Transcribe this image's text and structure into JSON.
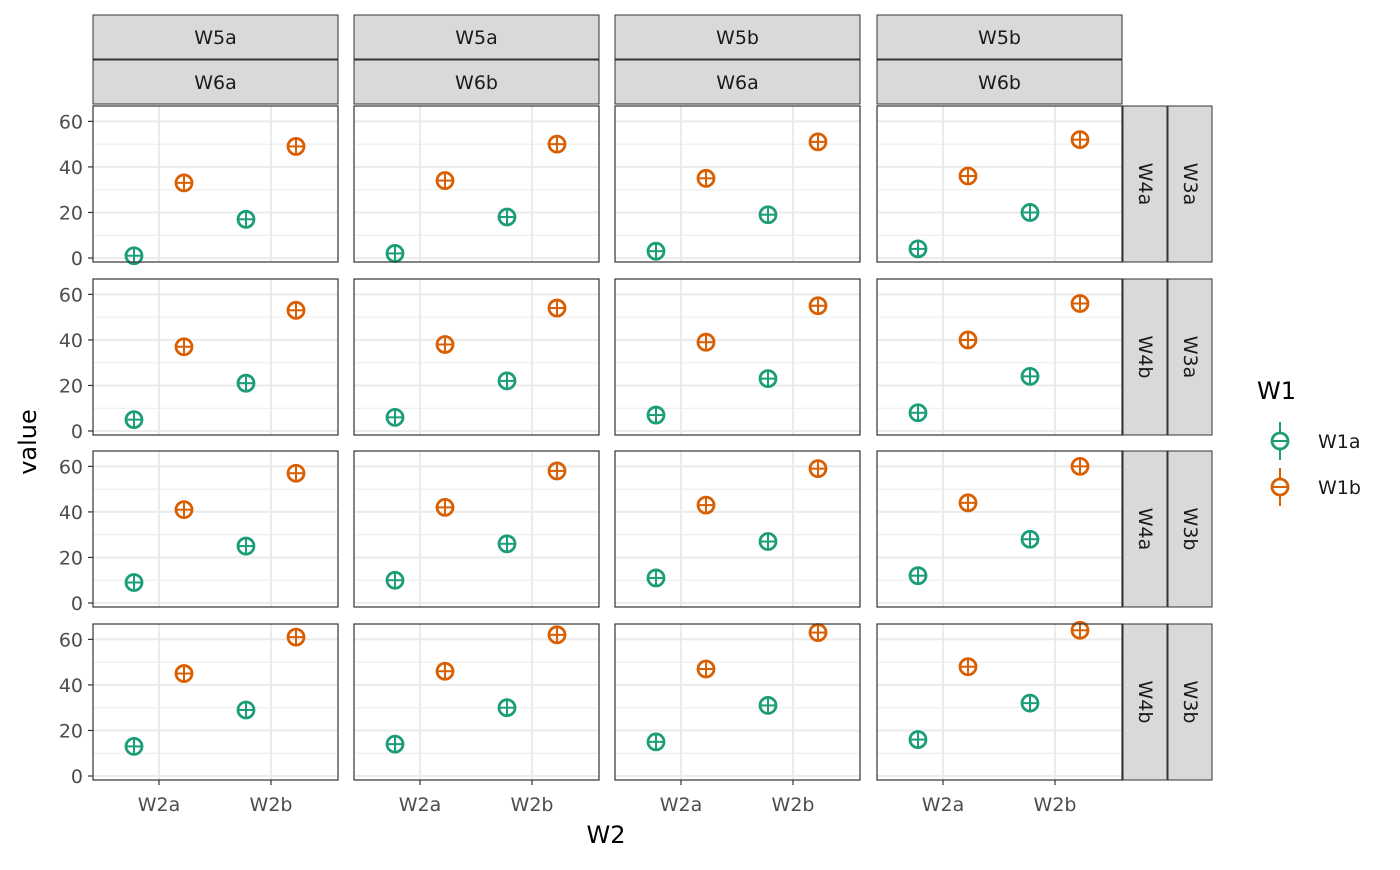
{
  "chart_data": {
    "type": "scatter",
    "xlabel": "W2",
    "ylabel": "value",
    "x_categories": [
      "W2a",
      "W2b"
    ],
    "ylim": [
      0,
      65
    ],
    "y_ticks": [
      0,
      20,
      40,
      60
    ],
    "grid": true,
    "legend": {
      "title": "W1",
      "position": "right",
      "entries": [
        "W1a",
        "W1b"
      ]
    },
    "colors": {
      "W1a": "#1b9e77",
      "W1b": "#d95f02"
    },
    "facet_cols": [
      {
        "top": "W5a",
        "bottom": "W6a"
      },
      {
        "top": "W5a",
        "bottom": "W6b"
      },
      {
        "top": "W5b",
        "bottom": "W6a"
      },
      {
        "top": "W5b",
        "bottom": "W6b"
      }
    ],
    "facet_rows": [
      {
        "inner": "W4a",
        "outer": "W3a"
      },
      {
        "inner": "W4b",
        "outer": "W3a"
      },
      {
        "inner": "W4a",
        "outer": "W3b"
      },
      {
        "inner": "W4b",
        "outer": "W3b"
      }
    ],
    "panels": [
      [
        {
          "W1a": [
            1,
            17
          ],
          "W1b": [
            33,
            49
          ]
        },
        {
          "W1a": [
            2,
            18
          ],
          "W1b": [
            34,
            50
          ]
        },
        {
          "W1a": [
            3,
            19
          ],
          "W1b": [
            35,
            51
          ]
        },
        {
          "W1a": [
            4,
            20
          ],
          "W1b": [
            36,
            52
          ]
        }
      ],
      [
        {
          "W1a": [
            5,
            21
          ],
          "W1b": [
            37,
            53
          ]
        },
        {
          "W1a": [
            6,
            22
          ],
          "W1b": [
            38,
            54
          ]
        },
        {
          "W1a": [
            7,
            23
          ],
          "W1b": [
            39,
            55
          ]
        },
        {
          "W1a": [
            8,
            24
          ],
          "W1b": [
            40,
            56
          ]
        }
      ],
      [
        {
          "W1a": [
            9,
            25
          ],
          "W1b": [
            41,
            57
          ]
        },
        {
          "W1a": [
            10,
            26
          ],
          "W1b": [
            42,
            58
          ]
        },
        {
          "W1a": [
            11,
            27
          ],
          "W1b": [
            43,
            59
          ]
        },
        {
          "W1a": [
            12,
            28
          ],
          "W1b": [
            44,
            60
          ]
        }
      ],
      [
        {
          "W1a": [
            13,
            29
          ],
          "W1b": [
            45,
            61
          ]
        },
        {
          "W1a": [
            14,
            30
          ],
          "W1b": [
            46,
            62
          ]
        },
        {
          "W1a": [
            15,
            31
          ],
          "W1b": [
            47,
            63
          ]
        },
        {
          "W1a": [
            16,
            32
          ],
          "W1b": [
            48,
            64
          ]
        }
      ]
    ]
  }
}
